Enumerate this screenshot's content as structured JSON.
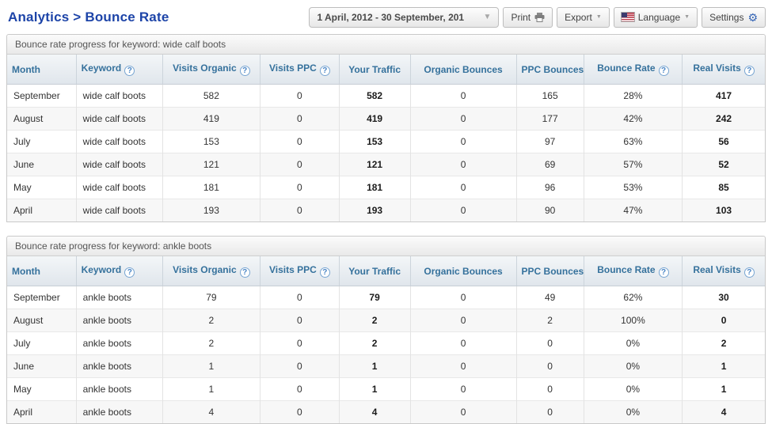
{
  "page": {
    "title": "Analytics > Bounce Rate"
  },
  "toolbar": {
    "date_range": "1 April, 2012 - 30 September, 201",
    "print_label": "Print",
    "export_label": "Export",
    "language_label": "Language",
    "settings_label": "Settings",
    "icons": {
      "date_caret": "chevron-down-icon",
      "printer": "printer-icon",
      "export_caret": "chevron-down-icon",
      "language_flag": "us-flag-icon",
      "language_caret": "chevron-down-icon",
      "settings_gear": "gear-icon"
    }
  },
  "colors": {
    "title_blue": "#1d44a8",
    "header_blue": "#35719c",
    "gear_blue": "#3565b5",
    "row_stripe": "#f7f7f7"
  },
  "columns": [
    {
      "label": "Month",
      "help": false
    },
    {
      "label": "Keyword",
      "help": true
    },
    {
      "label": "Visits Organic",
      "help": true
    },
    {
      "label": "Visits PPC",
      "help": true
    },
    {
      "label": "Your Traffic",
      "help": false
    },
    {
      "label": "Organic Bounces",
      "help": false
    },
    {
      "label": "PPC Bounces",
      "help": false
    },
    {
      "label": "Bounce Rate",
      "help": true
    },
    {
      "label": "Real Visits",
      "help": true
    }
  ],
  "tables": [
    {
      "title": "Bounce rate progress for keyword: wide calf boots",
      "rows": [
        [
          "September",
          "wide calf boots",
          "582",
          "0",
          "582",
          "0",
          "165",
          "28%",
          "417"
        ],
        [
          "August",
          "wide calf boots",
          "419",
          "0",
          "419",
          "0",
          "177",
          "42%",
          "242"
        ],
        [
          "July",
          "wide calf boots",
          "153",
          "0",
          "153",
          "0",
          "97",
          "63%",
          "56"
        ],
        [
          "June",
          "wide calf boots",
          "121",
          "0",
          "121",
          "0",
          "69",
          "57%",
          "52"
        ],
        [
          "May",
          "wide calf boots",
          "181",
          "0",
          "181",
          "0",
          "96",
          "53%",
          "85"
        ],
        [
          "April",
          "wide calf boots",
          "193",
          "0",
          "193",
          "0",
          "90",
          "47%",
          "103"
        ]
      ]
    },
    {
      "title": "Bounce rate progress for keyword: ankle boots",
      "rows": [
        [
          "September",
          "ankle boots",
          "79",
          "0",
          "79",
          "0",
          "49",
          "62%",
          "30"
        ],
        [
          "August",
          "ankle boots",
          "2",
          "0",
          "2",
          "0",
          "2",
          "100%",
          "0"
        ],
        [
          "July",
          "ankle boots",
          "2",
          "0",
          "2",
          "0",
          "0",
          "0%",
          "2"
        ],
        [
          "June",
          "ankle boots",
          "1",
          "0",
          "1",
          "0",
          "0",
          "0%",
          "1"
        ],
        [
          "May",
          "ankle boots",
          "1",
          "0",
          "1",
          "0",
          "0",
          "0%",
          "1"
        ],
        [
          "April",
          "ankle boots",
          "4",
          "0",
          "4",
          "0",
          "0",
          "0%",
          "4"
        ]
      ]
    }
  ]
}
